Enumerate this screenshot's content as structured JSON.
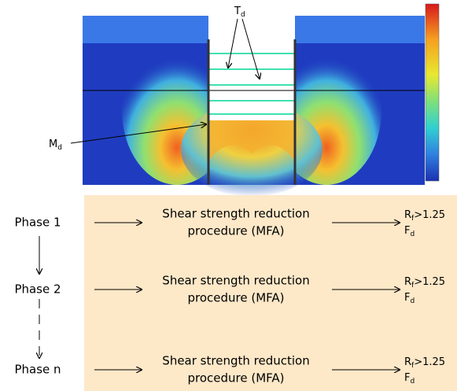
{
  "annotations": {
    "td": {
      "main": "T",
      "sub": "d"
    },
    "md": {
      "main": "M",
      "sub": "d"
    }
  },
  "phases": [
    {
      "phase": "Phase 1",
      "procedure": [
        "Shear strength reduction",
        "procedure (MFA)"
      ],
      "result": {
        "r": "R",
        "rsub": "f",
        "rrest": ">1.25",
        "f": "F",
        "fsub": "d"
      }
    },
    {
      "phase": "Phase 2",
      "procedure": [
        "Shear strength reduction",
        "procedure (MFA)"
      ],
      "result": {
        "r": "R",
        "rsub": "f",
        "rrest": ">1.25",
        "f": "F",
        "fsub": "d"
      }
    },
    {
      "phase": "Phase n",
      "procedure": [
        "Shear strength reduction",
        "procedure (MFA)"
      ],
      "result": {
        "r": "R",
        "rsub": "f",
        "rrest": ">1.25",
        "f": "F",
        "fsub": "d"
      }
    }
  ]
}
